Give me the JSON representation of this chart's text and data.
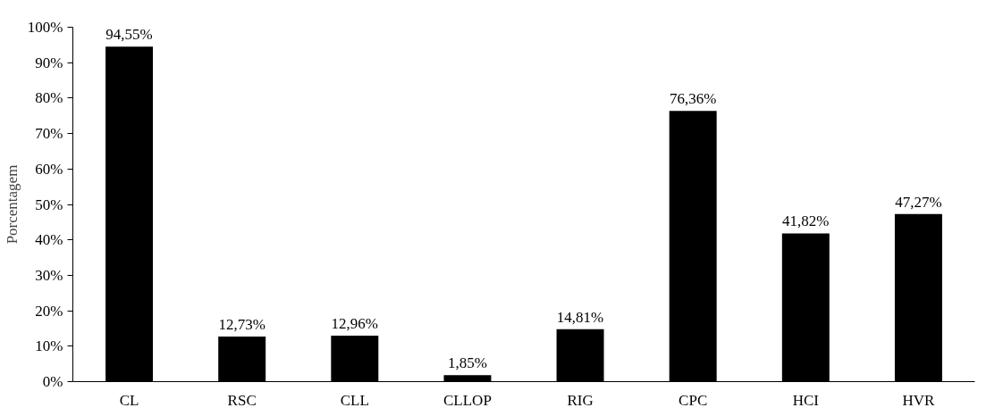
{
  "chart_data": {
    "type": "bar",
    "ylabel": "Porcentagem",
    "categories": [
      "CL",
      "RSC",
      "CLL",
      "CLLOP",
      "RIG",
      "CPC",
      "HCI",
      "HVR"
    ],
    "values": [
      94.55,
      12.73,
      12.96,
      1.85,
      14.81,
      76.36,
      41.82,
      47.27
    ],
    "value_labels": [
      "94,55%",
      "12,73%",
      "12,96%",
      "1,85%",
      "14,81%",
      "76,36%",
      "41,82%",
      "47,27%"
    ],
    "color": "#000000",
    "ylim": [
      0,
      100
    ],
    "yticks": [
      {
        "value": 0,
        "label": "0%"
      },
      {
        "value": 10,
        "label": "10%"
      },
      {
        "value": 20,
        "label": "20%"
      },
      {
        "value": 30,
        "label": "30%"
      },
      {
        "value": 40,
        "label": "40%"
      },
      {
        "value": 50,
        "label": "50%"
      },
      {
        "value": 60,
        "label": "60%"
      },
      {
        "value": 70,
        "label": "70%"
      },
      {
        "value": 80,
        "label": "80%"
      },
      {
        "value": 90,
        "label": "90%"
      },
      {
        "value": 100,
        "label": "100%"
      }
    ],
    "grid": false
  }
}
